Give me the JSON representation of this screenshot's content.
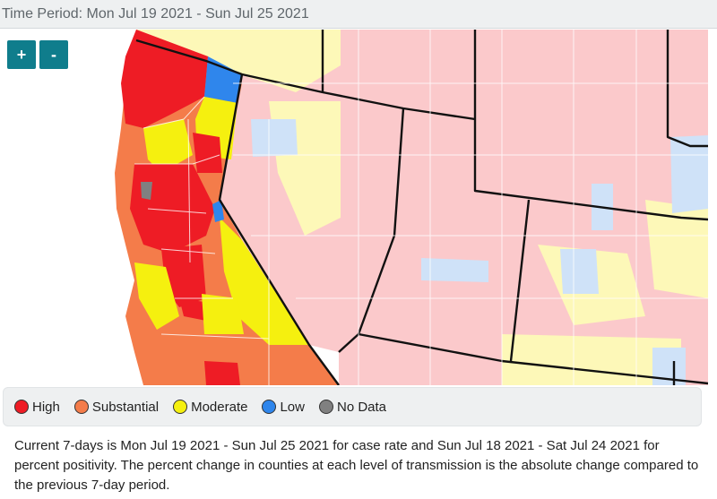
{
  "header": {
    "time_period": "Time Period: Mon Jul 19 2021 - Sun Jul 25 2021"
  },
  "controls": {
    "zoom_in": "+",
    "zoom_out": "-"
  },
  "legend": [
    {
      "label": "High",
      "color": "#ee1c25"
    },
    {
      "label": "Substantial",
      "color": "#f47c4a"
    },
    {
      "label": "Moderate",
      "color": "#f5f00f"
    },
    {
      "label": "Low",
      "color": "#2f86ec"
    },
    {
      "label": "No Data",
      "color": "#808080"
    }
  ],
  "map_colors": {
    "high_light": "#fbc9cb",
    "moderate_light": "#fdf8b8",
    "low_light": "#cfe2f8",
    "ocean": "#ffffff",
    "border": "#111111"
  },
  "footnote": "Current 7-days is Mon Jul 19 2021 - Sun Jul 25 2021 for case rate and Sun Jul 18 2021 - Sat Jul 24 2021 for percent positivity. The percent change in counties at each level of transmission is the absolute change compared to the previous 7-day period."
}
